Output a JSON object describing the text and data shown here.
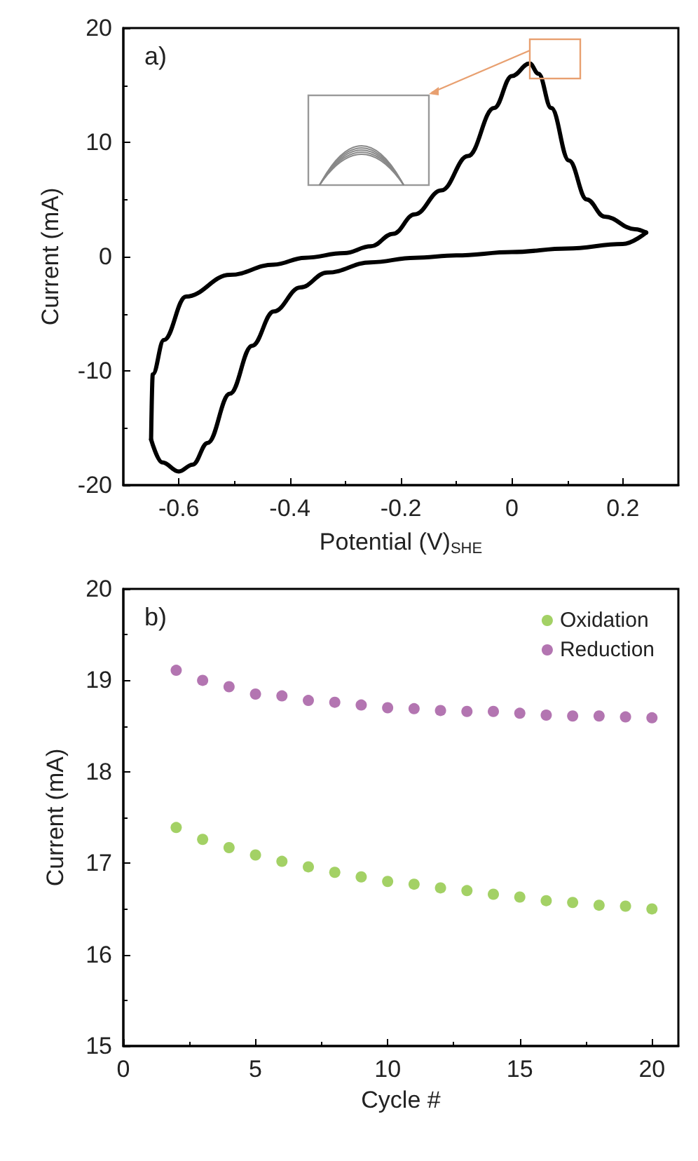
{
  "chart_data": [
    {
      "type": "line",
      "title": "a)",
      "xlabel": "Potential (V)$_{SHE}$",
      "ylabel": "Current (mA)",
      "xlim": [
        -0.7,
        0.3
      ],
      "xticks": [
        -0.6,
        -0.4,
        -0.2,
        0,
        0.2
      ],
      "ylim": [
        -20,
        20
      ],
      "yticks": [
        -20,
        -10,
        0,
        10,
        20
      ],
      "grid": false,
      "legend": false,
      "marker": "none",
      "line_style": "solid",
      "series": [
        {
          "color": "#000000",
          "x": [
            -0.65,
            -0.63,
            -0.6,
            -0.575,
            -0.548,
            -0.508,
            -0.468,
            -0.429,
            -0.381,
            -0.333,
            -0.254,
            -0.175,
            -0.1,
            0,
            0.1,
            0.2,
            0.242
          ],
          "values": [
            -16,
            -18,
            -18.8,
            -18.2,
            -16.3,
            -12,
            -7.8,
            -4.8,
            -2.7,
            -1.4,
            -0.5,
            -0.1,
            0.1,
            0.4,
            0.7,
            1.1,
            2.1
          ]
        },
        {
          "color": "#000000",
          "x": [
            0.242,
            0.222,
            0.167,
            0.135,
            0.103,
            0.071,
            0.048,
            0.032,
            0,
            -0.032,
            -0.079,
            -0.127,
            -0.175,
            -0.214,
            -0.254,
            -0.302,
            -0.373,
            -0.429,
            -0.508,
            -0.587,
            -0.627,
            -0.647,
            -0.65
          ],
          "values": [
            2.1,
            2.4,
            3.5,
            5,
            8.4,
            13,
            16,
            16.9,
            15.8,
            13,
            8.8,
            5.8,
            3.7,
            2,
            0.9,
            0.3,
            -0.1,
            -0.7,
            -1.6,
            -3.5,
            -7.3,
            -10.3,
            -16
          ]
        }
      ]
    },
    {
      "type": "scatter",
      "title": "b)",
      "xlabel": "Cycle #",
      "ylabel": "Current (mA)",
      "xlim": [
        0,
        21
      ],
      "xticks": [
        0,
        5,
        10,
        15,
        20
      ],
      "ylim": [
        15,
        20
      ],
      "yticks": [
        15,
        16,
        17,
        18,
        19,
        20
      ],
      "grid": false,
      "legend": "top right",
      "marker": "circle",
      "x": [
        2,
        3,
        4,
        5,
        6,
        7,
        8,
        9,
        10,
        11,
        12,
        13,
        14,
        15,
        16,
        17,
        18,
        19,
        20
      ],
      "series": [
        {
          "name": "Oxidation",
          "color": "#8cc63f",
          "values": [
            17.39,
            17.26,
            17.17,
            17.09,
            17.02,
            16.96,
            16.9,
            16.85,
            16.8,
            16.77,
            16.73,
            16.7,
            16.66,
            16.63,
            16.59,
            16.57,
            16.54,
            16.53,
            16.5
          ]
        },
        {
          "name": "Reduction",
          "color": "#a0529e",
          "values": [
            19.11,
            19.0,
            18.93,
            18.85,
            18.83,
            18.78,
            18.76,
            18.73,
            18.7,
            18.69,
            18.67,
            18.66,
            18.66,
            18.64,
            18.62,
            18.61,
            18.61,
            18.6,
            18.59
          ]
        }
      ]
    }
  ]
}
